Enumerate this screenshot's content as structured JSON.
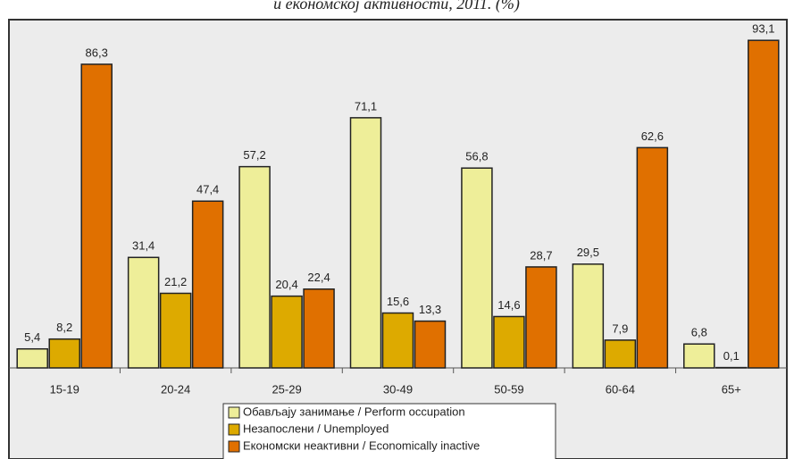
{
  "chart_data": {
    "type": "bar",
    "title": "и економској активности, 2011. (%)",
    "categories": [
      "15-19",
      "20-24",
      "25-29",
      "30-49",
      "50-59",
      "60-64",
      "65+"
    ],
    "series": [
      {
        "name": "Обављају занимање / Perform occupation",
        "color": "#eeee99",
        "values": [
          5.4,
          31.4,
          57.2,
          71.1,
          56.8,
          29.5,
          6.8
        ],
        "value_labels": [
          "5,4",
          "31,4",
          "57,2",
          "71,1",
          "56,8",
          "29,5",
          "6,8"
        ]
      },
      {
        "name": "Незапослени / Unemployed",
        "color": "#ddaa00",
        "values": [
          8.2,
          21.2,
          20.4,
          15.6,
          14.6,
          7.9,
          0.1
        ],
        "value_labels": [
          "8,2",
          "21,2",
          "20,4",
          "15,6",
          "14,6",
          "7,9",
          "0,1"
        ]
      },
      {
        "name": "Економски неактивни / Economically inactive",
        "color": "#e07000",
        "values": [
          86.3,
          47.4,
          22.4,
          13.3,
          28.7,
          62.6,
          93.1
        ],
        "value_labels": [
          "86,3",
          "47,4",
          "22,4",
          "13,3",
          "28,7",
          "62,6",
          "93,1"
        ]
      }
    ],
    "ylim": [
      0,
      100
    ]
  }
}
